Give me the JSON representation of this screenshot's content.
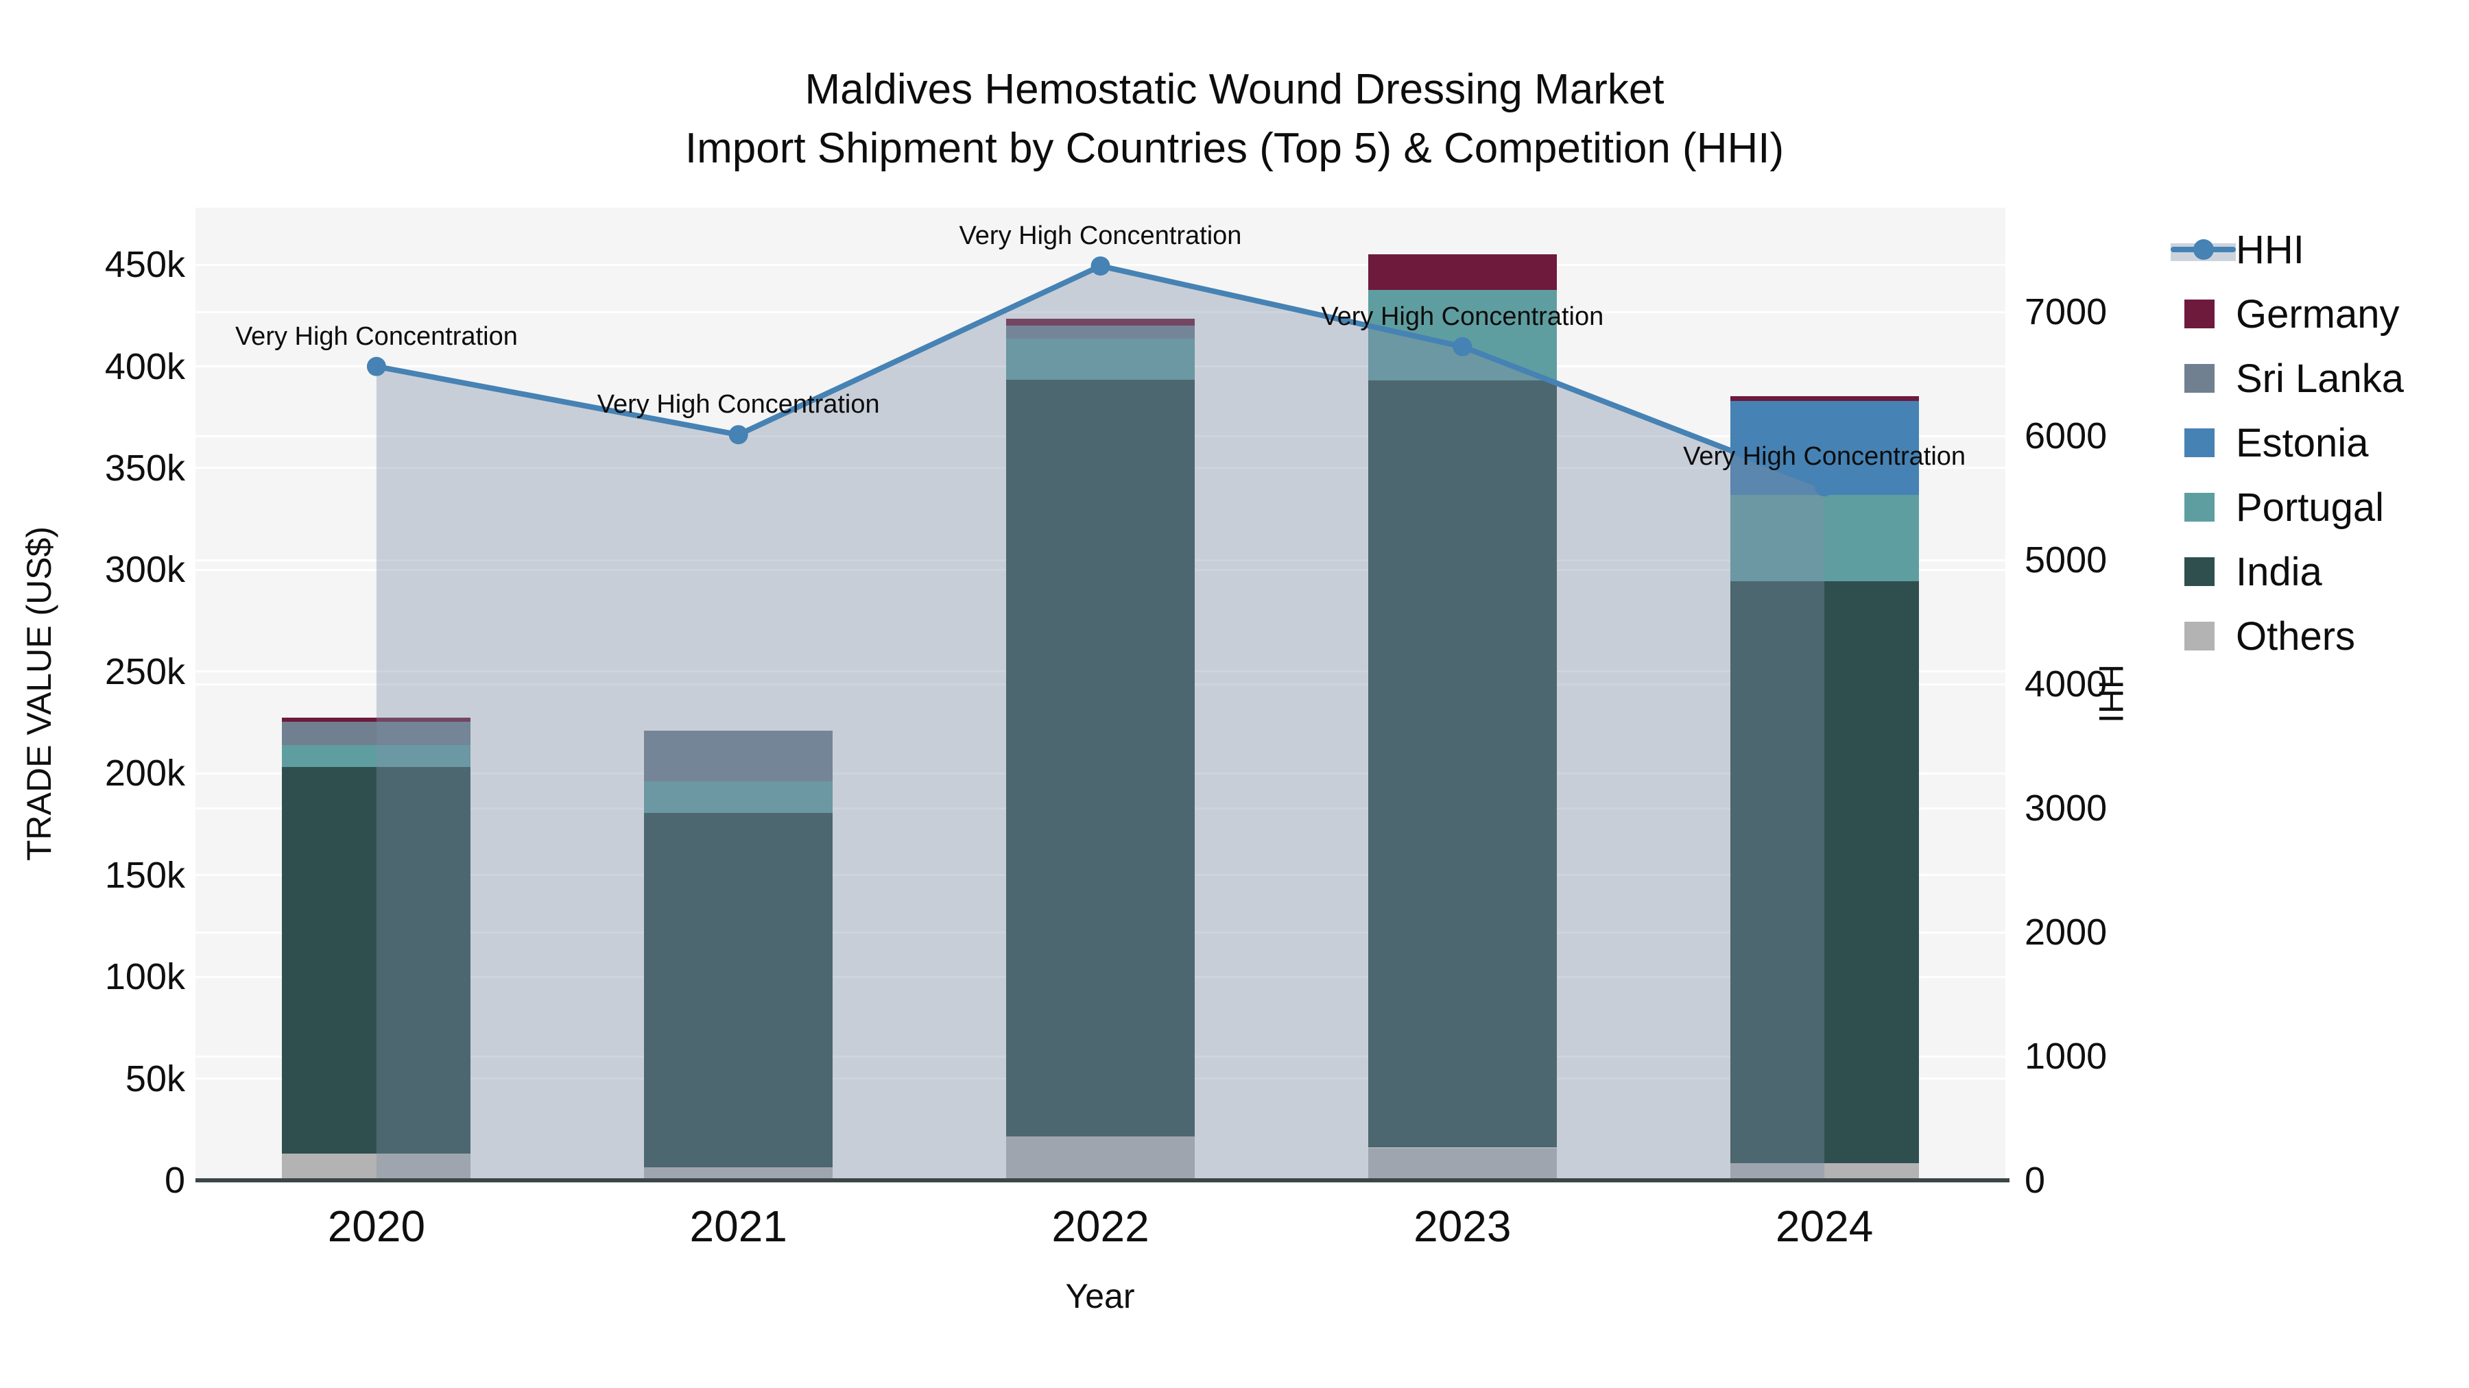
{
  "title": {
    "line1": "Maldives Hemostatic Wound Dressing Market",
    "line2": "Import Shipment by Countries (Top 5) & Competition (HHI)"
  },
  "annotation_text": "Very High Concentration",
  "colors": {
    "plot_background": "#f5f5f5",
    "gridline": "#ffffff",
    "axis_line": "#3b4747",
    "text": "#0d0d0d",
    "hhi_line": "#4682b4",
    "hhi_area_fill": "rgba(125,142,165,0.38)"
  },
  "chart_data": {
    "type": "bar",
    "stacked": true,
    "title": "Maldives Hemostatic Wound Dressing Market",
    "subtitle": "Import Shipment by Countries (Top 5) & Competition (HHI)",
    "xlabel": "Year",
    "ylabel_left": "TRADE VALUE (US$)",
    "ylabel_right": "HHI",
    "legend_position": "right",
    "grid": true,
    "categories": [
      "2020",
      "2021",
      "2022",
      "2023",
      "2024"
    ],
    "series": [
      {
        "name": "Germany",
        "color": "#6d1a3d",
        "values": [
          2000,
          0,
          3500,
          17500,
          2500
        ]
      },
      {
        "name": "Sri Lanka",
        "color": "#708090",
        "values": [
          11500,
          25000,
          6500,
          0,
          0
        ]
      },
      {
        "name": "Estonia",
        "color": "#4682b4",
        "values": [
          0,
          0,
          0,
          0,
          46000
        ]
      },
      {
        "name": "Portugal",
        "color": "#5f9ea0",
        "values": [
          11000,
          15500,
          20000,
          44500,
          42500
        ]
      },
      {
        "name": "India",
        "color": "#2f4f4f",
        "values": [
          190000,
          174000,
          372000,
          377000,
          286000
        ]
      },
      {
        "name": "Others",
        "color": "#b3b3b3",
        "values": [
          13000,
          6500,
          21500,
          16000,
          8500
        ]
      }
    ],
    "bar_totals": [
      227500,
      221000,
      423500,
      455000,
      385500
    ],
    "line_series": {
      "name": "HHI",
      "axis": "right",
      "color": "#4682b4",
      "area_fill": "rgba(125,142,165,0.38)",
      "values": [
        6560,
        6010,
        7370,
        6720,
        5590
      ]
    },
    "annotations": [
      {
        "text": "Very High Concentration",
        "x": "2020",
        "y": 6560
      },
      {
        "text": "Very High Concentration",
        "x": "2021",
        "y": 6010
      },
      {
        "text": "Very High Concentration",
        "x": "2022",
        "y": 7370
      },
      {
        "text": "Very High Concentration",
        "x": "2023",
        "y": 6720
      },
      {
        "text": "Very High Concentration",
        "x": "2024",
        "y": 5590
      }
    ],
    "y_left_ticks": {
      "labels": [
        "0",
        "50k",
        "100k",
        "150k",
        "200k",
        "250k",
        "300k",
        "350k",
        "400k",
        "450k"
      ],
      "values": [
        0,
        50000,
        100000,
        150000,
        200000,
        250000,
        300000,
        350000,
        400000,
        450000
      ]
    },
    "y_right_ticks": {
      "labels": [
        "0",
        "1000",
        "2000",
        "3000",
        "4000",
        "5000",
        "6000",
        "7000"
      ],
      "values": [
        0,
        1000,
        2000,
        3000,
        4000,
        5000,
        6000,
        7000
      ]
    },
    "ylim_left": [
      0,
      478000
    ],
    "ylim_right": [
      0,
      7840
    ]
  }
}
